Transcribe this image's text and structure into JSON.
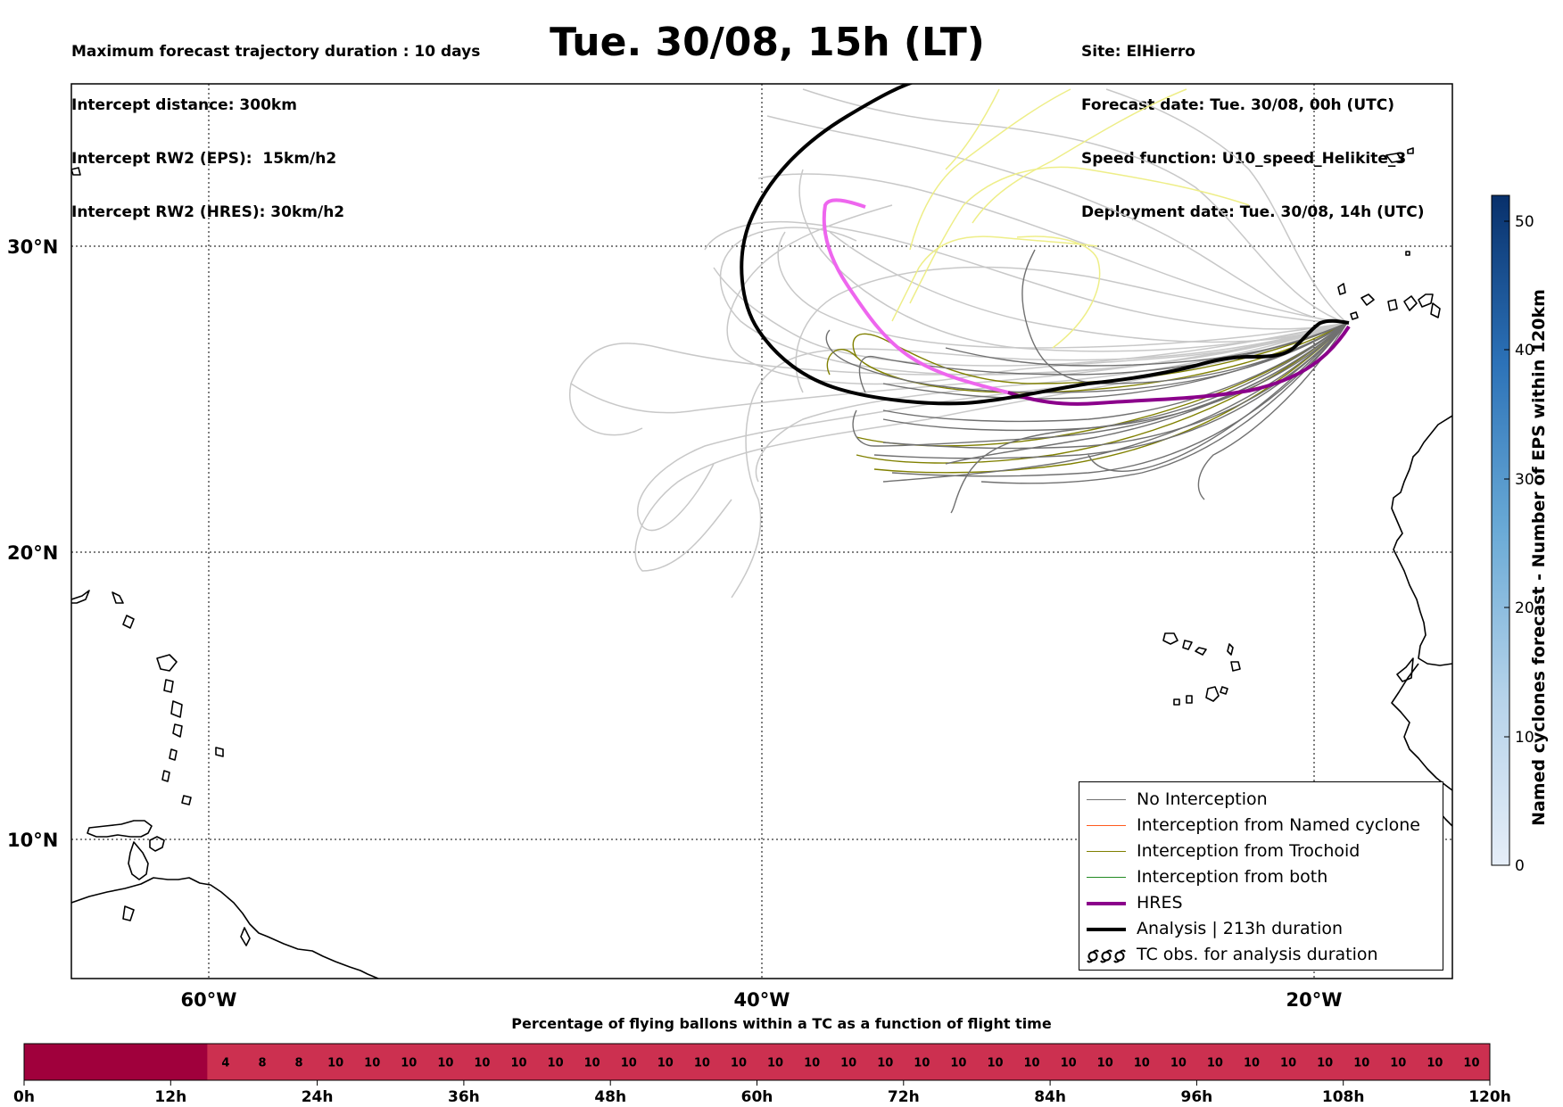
{
  "header": {
    "left_lines": [
      "Maximum forecast trajectory duration : 10 days",
      "Intercept distance: 300km",
      "Intercept RW2 (EPS):  15km/h2",
      "Intercept RW2 (HRES): 30km/h2"
    ],
    "title": "Tue. 30/08, 15h (LT)",
    "right_lines": [
      "Site: ElHierro",
      "Forecast date: Tue. 30/08, 00h (UTC)",
      "Speed function: U10_speed_Helikite_3",
      "Deployment date: Tue. 30/08, 14h (UTC)"
    ]
  },
  "map": {
    "lat_labels": [
      "30°N",
      "20°N",
      "10°N"
    ],
    "lon_labels": [
      "60°W",
      "40°W",
      "20°W"
    ],
    "colors": {
      "no_interception": "#707070",
      "eps_other": "#c8c8c8",
      "named_cyclone": "#ff5a1e",
      "trochoid": "#808000",
      "both": "#228b22",
      "hres": "#8b008b",
      "hres_early": "#ee66ee",
      "analysis": "#000000",
      "yellow_tracks": "#eeee88"
    }
  },
  "legend": {
    "items": [
      {
        "label": "No Interception",
        "color": "#707070",
        "style": "thin"
      },
      {
        "label": "Interception from Named cyclone",
        "color": "#ff5a1e",
        "style": "thin"
      },
      {
        "label": "Interception from Trochoid",
        "color": "#808000",
        "style": "thin"
      },
      {
        "label": "Interception from both",
        "color": "#228b22",
        "style": "thin"
      },
      {
        "label": "HRES",
        "color": "#8b008b",
        "style": "thick"
      },
      {
        "label": "Analysis | 213h duration",
        "color": "#000000",
        "style": "thick"
      },
      {
        "label": "TC obs. for analysis duration",
        "color": "#000000",
        "style": "symbol"
      }
    ]
  },
  "colorbar": {
    "label": "Named cyclones forecast - Number of EPS within 120km",
    "ticks": [
      "0",
      "10",
      "20",
      "30",
      "40",
      "50"
    ],
    "min": 0,
    "max": 52
  },
  "bottom_bar": {
    "title": "Percentage of flying ballons within a TC as a function of flight time",
    "hour_labels": [
      "0h",
      "12h",
      "24h",
      "36h",
      "48h",
      "60h",
      "72h",
      "84h",
      "96h",
      "108h",
      "120h"
    ],
    "cells": [
      "",
      "",
      "",
      "",
      "",
      "4",
      "8",
      "8",
      "10",
      "10",
      "10",
      "10",
      "10",
      "10",
      "10",
      "10",
      "10",
      "10",
      "10",
      "10",
      "10",
      "10",
      "10",
      "10",
      "10",
      "10",
      "10",
      "10",
      "10",
      "10",
      "10",
      "10",
      "10",
      "10",
      "10",
      "10",
      "10",
      "10",
      "10",
      "10"
    ],
    "colors": {
      "high": "#a0003c",
      "mid": "#cc3050"
    }
  }
}
